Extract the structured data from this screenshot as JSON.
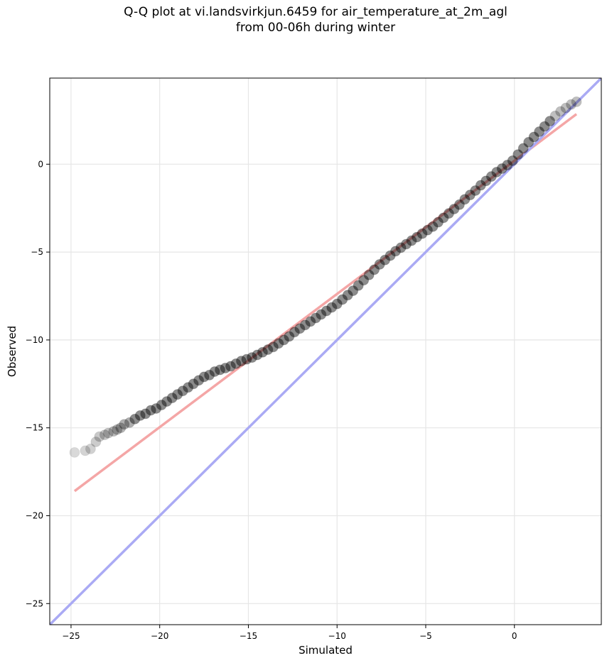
{
  "chart_data": {
    "type": "scatter",
    "title": "Q-Q plot at vi.landsvirkjun.6459 for air_temperature_at_2m_agl\nfrom 00-06h during winter",
    "xlabel": "Simulated",
    "ylabel": "Observed",
    "xlim": [
      -26.2,
      4.9
    ],
    "ylim": [
      -26.2,
      4.9
    ],
    "xticks": [
      -25,
      -20,
      -15,
      -10,
      -5,
      0
    ],
    "yticks": [
      -25,
      -20,
      -15,
      -10,
      -5,
      0
    ],
    "xtick_labels": [
      "−25",
      "−20",
      "−15",
      "−10",
      "−5",
      "0"
    ],
    "ytick_labels": [
      "−25",
      "−20",
      "−15",
      "−10",
      "−5",
      "0"
    ],
    "grid": true,
    "series": [
      {
        "kind": "points",
        "color": "#000000",
        "x": [
          -24.8,
          -24.2,
          -23.9,
          -23.6,
          -23.4,
          -23.1,
          -22.9,
          -22.6,
          -22.4,
          -22.2,
          -22.0,
          -21.7,
          -21.4,
          -21.1,
          -20.8,
          -20.5,
          -20.2,
          -19.9,
          -19.6,
          -19.3,
          -19.0,
          -18.7,
          -18.4,
          -18.1,
          -17.8,
          -17.5,
          -17.2,
          -16.9,
          -16.6,
          -16.3,
          -16.0,
          -15.7,
          -15.4,
          -15.1,
          -14.8,
          -14.5,
          -14.2,
          -13.9,
          -13.6,
          -13.3,
          -13.0,
          -12.7,
          -12.4,
          -12.1,
          -11.8,
          -11.5,
          -11.2,
          -10.9,
          -10.6,
          -10.3,
          -10.0,
          -9.7,
          -9.4,
          -9.1,
          -8.8,
          -8.5,
          -8.2,
          -7.9,
          -7.6,
          -7.3,
          -7.0,
          -6.7,
          -6.4,
          -6.1,
          -5.8,
          -5.5,
          -5.2,
          -4.9,
          -4.6,
          -4.3,
          -4.0,
          -3.7,
          -3.4,
          -3.1,
          -2.8,
          -2.5,
          -2.2,
          -1.9,
          -1.6,
          -1.3,
          -1.0,
          -0.7,
          -0.4,
          -0.1,
          0.2,
          0.5,
          0.8,
          1.1,
          1.4,
          1.7,
          2.0,
          2.3,
          2.6,
          2.9,
          3.2,
          3.5
        ],
        "y": [
          -16.4,
          -16.3,
          -16.2,
          -15.8,
          -15.5,
          -15.4,
          -15.3,
          -15.2,
          -15.1,
          -15.0,
          -14.8,
          -14.7,
          -14.5,
          -14.3,
          -14.2,
          -14.0,
          -13.9,
          -13.7,
          -13.5,
          -13.3,
          -13.1,
          -12.9,
          -12.7,
          -12.5,
          -12.3,
          -12.1,
          -12.0,
          -11.8,
          -11.7,
          -11.6,
          -11.5,
          -11.35,
          -11.2,
          -11.1,
          -11.0,
          -10.85,
          -10.7,
          -10.55,
          -10.4,
          -10.2,
          -10.0,
          -9.8,
          -9.55,
          -9.35,
          -9.15,
          -8.95,
          -8.75,
          -8.55,
          -8.35,
          -8.15,
          -7.95,
          -7.7,
          -7.45,
          -7.2,
          -6.9,
          -6.6,
          -6.3,
          -6.0,
          -5.7,
          -5.45,
          -5.2,
          -4.95,
          -4.75,
          -4.55,
          -4.35,
          -4.15,
          -3.95,
          -3.75,
          -3.55,
          -3.3,
          -3.05,
          -2.8,
          -2.55,
          -2.3,
          -2.0,
          -1.75,
          -1.5,
          -1.2,
          -0.95,
          -0.7,
          -0.45,
          -0.25,
          -0.05,
          0.2,
          0.55,
          0.9,
          1.25,
          1.55,
          1.85,
          2.15,
          2.45,
          2.75,
          3.0,
          3.2,
          3.4,
          3.55
        ]
      },
      {
        "kind": "fit-line",
        "color": "#f4a6a6",
        "x": [
          -24.8,
          3.5
        ],
        "y": [
          -18.6,
          2.85
        ]
      },
      {
        "kind": "identity-line",
        "color": "#aaaaf4",
        "x": [
          -26.2,
          4.9
        ],
        "y": [
          -26.2,
          4.9
        ]
      }
    ]
  }
}
